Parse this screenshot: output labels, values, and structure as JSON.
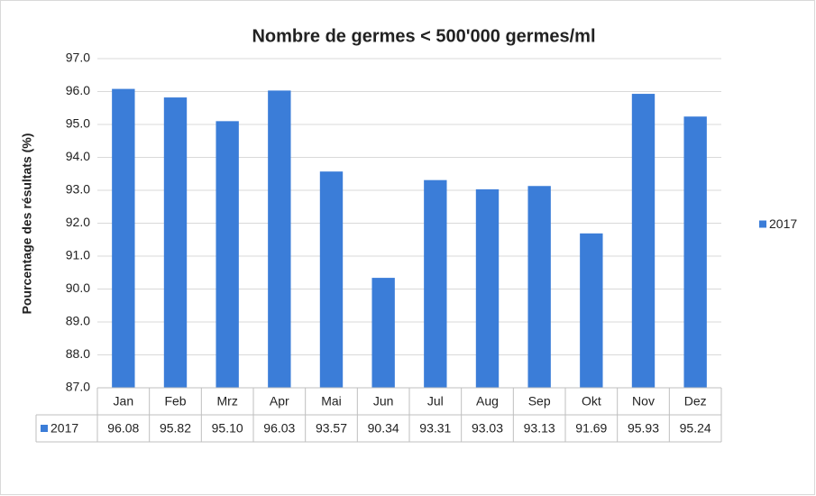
{
  "chart_data": {
    "type": "bar",
    "title": "Nombre de germes < 500'000 germes/ml",
    "y_label": "Pourcentage des résultats (%)",
    "categories": [
      "Jan",
      "Feb",
      "Mrz",
      "Apr",
      "Mai",
      "Jun",
      "Jul",
      "Aug",
      "Sep",
      "Okt",
      "Nov",
      "Dez"
    ],
    "series": [
      {
        "name": "2017",
        "color": "#3b7dd8",
        "values": [
          96.08,
          95.82,
          95.1,
          96.03,
          93.57,
          90.34,
          93.31,
          93.03,
          93.13,
          91.69,
          95.93,
          95.24
        ],
        "value_labels": [
          "96.08",
          "95.82",
          "95.10",
          "96.03",
          "93.57",
          "90.34",
          "93.31",
          "93.03",
          "93.13",
          "91.69",
          "95.93",
          "95.24"
        ]
      }
    ],
    "ylim": [
      87,
      97
    ],
    "yticks": [
      {
        "value": 87,
        "label": "87.0"
      },
      {
        "value": 88,
        "label": "88.0"
      },
      {
        "value": 89,
        "label": "89.0"
      },
      {
        "value": 90,
        "label": "90.0"
      },
      {
        "value": 91,
        "label": "91.0"
      },
      {
        "value": 92,
        "label": "92.0"
      },
      {
        "value": 93,
        "label": "93.0"
      },
      {
        "value": 94,
        "label": "94.0"
      },
      {
        "value": 95,
        "label": "95.0"
      },
      {
        "value": 96,
        "label": "96.0"
      },
      {
        "value": 97,
        "label": "97.0"
      }
    ],
    "grid": true,
    "legend": "right",
    "data_table": true
  }
}
